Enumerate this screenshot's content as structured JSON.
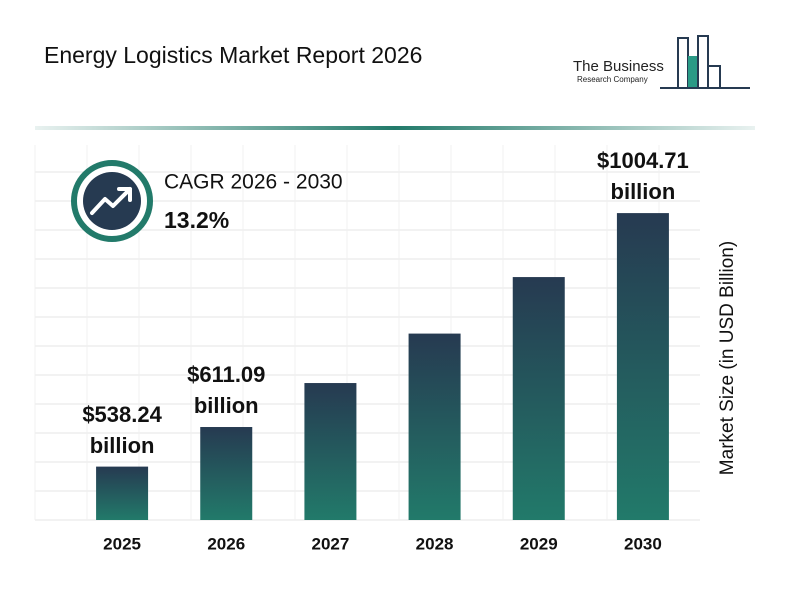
{
  "chart_data": {
    "type": "bar",
    "title": "Energy Logistics Market Report 2026",
    "logo": [
      "The Business",
      "Research Company"
    ],
    "cagr_label": "CAGR 2026 - 2030",
    "cagr_value": "13.2%",
    "y_label": "Market Size (in USD Billion)",
    "categories": [
      "2025",
      "2026",
      "2027",
      "2028",
      "2029",
      "2030"
    ],
    "values": [
      538.24,
      611.09,
      692,
      783,
      887,
      1004.71
    ],
    "value_labels": [
      "$538.24 billion",
      "$611.09 billion",
      null,
      null,
      null,
      "$1004.71 billion"
    ],
    "color_top": "#263a51",
    "color_bottom": "#227a6a",
    "ylim": [
      440,
      1130
    ]
  }
}
